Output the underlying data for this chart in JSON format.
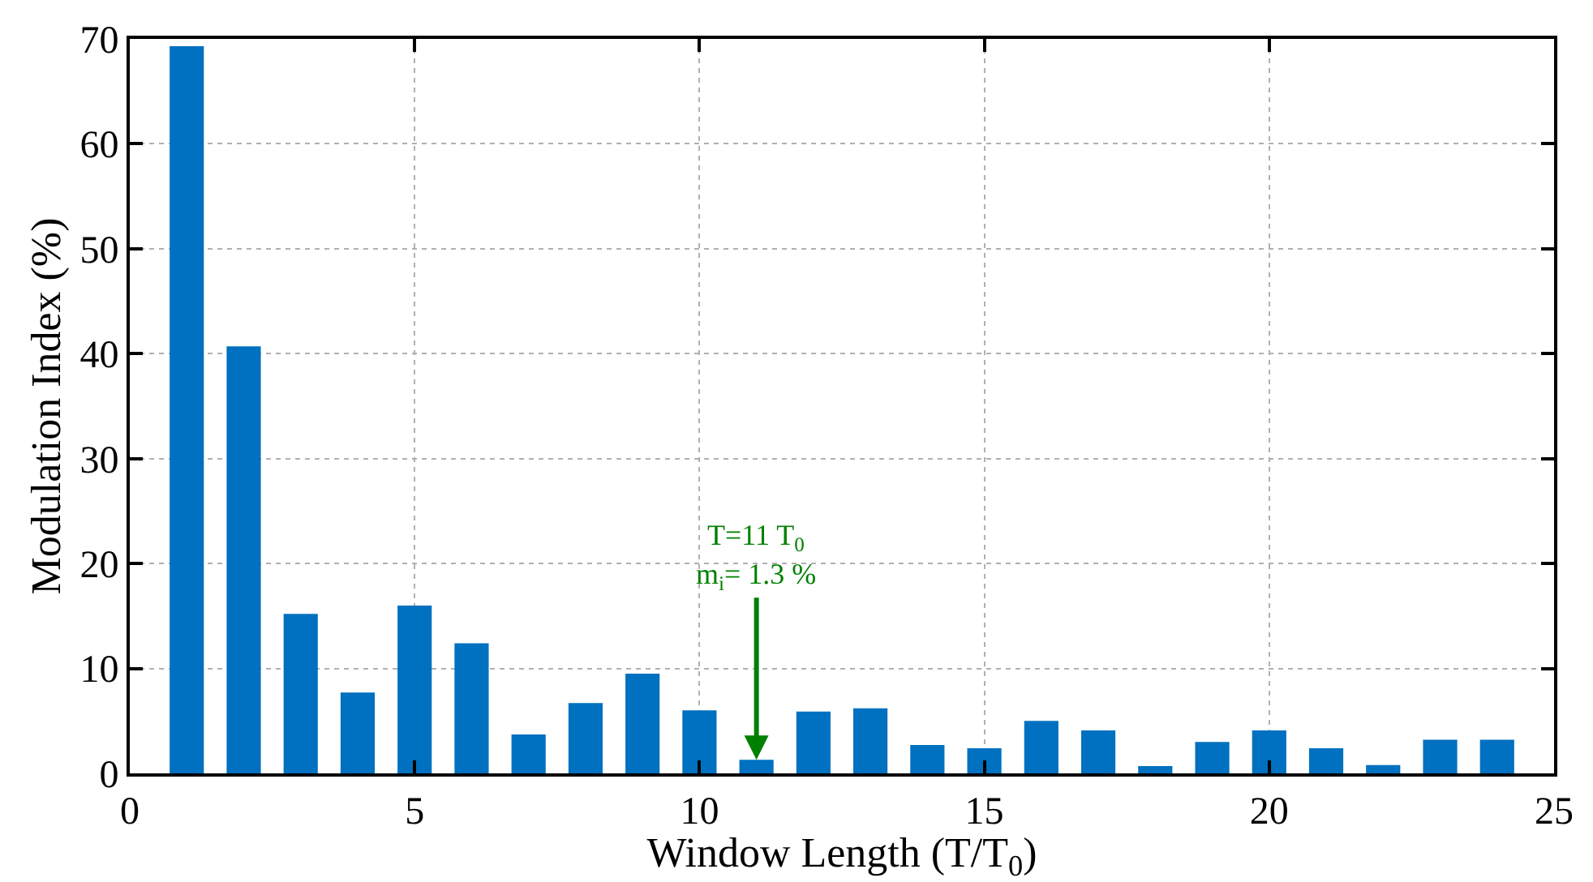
{
  "chart_data": {
    "type": "bar",
    "x": [
      1,
      2,
      3,
      4,
      5,
      6,
      7,
      8,
      9,
      10,
      11,
      12,
      13,
      14,
      15,
      16,
      17,
      18,
      19,
      20,
      21,
      22,
      23,
      24
    ],
    "series": [
      {
        "color": "#0070c0",
        "values": [
          69.3,
          40.7,
          15.2,
          7.7,
          16.0,
          12.4,
          3.7,
          6.7,
          9.5,
          6.0,
          1.3,
          5.9,
          6.2,
          2.7,
          2.4,
          5.0,
          4.1,
          0.7,
          3.0,
          4.1,
          2.4,
          0.8,
          3.2,
          3.2
        ]
      }
    ],
    "xlabel": "Window Length (T/T$_{0}$)",
    "ylabel": "Modulation Index (%)",
    "xlim": [
      0,
      25
    ],
    "xticks": [
      0,
      5,
      10,
      15,
      20,
      25
    ],
    "ylim": [
      0,
      70
    ],
    "yticks": [
      0,
      10,
      20,
      30,
      40,
      50,
      60,
      70
    ],
    "grid": true,
    "annotations": [
      "T=11 T$_{0}$",
      {
        "text": "m$_{i}$= 1.3 %",
        "x": 11,
        "y": 1.3
      }
    ]
  }
}
